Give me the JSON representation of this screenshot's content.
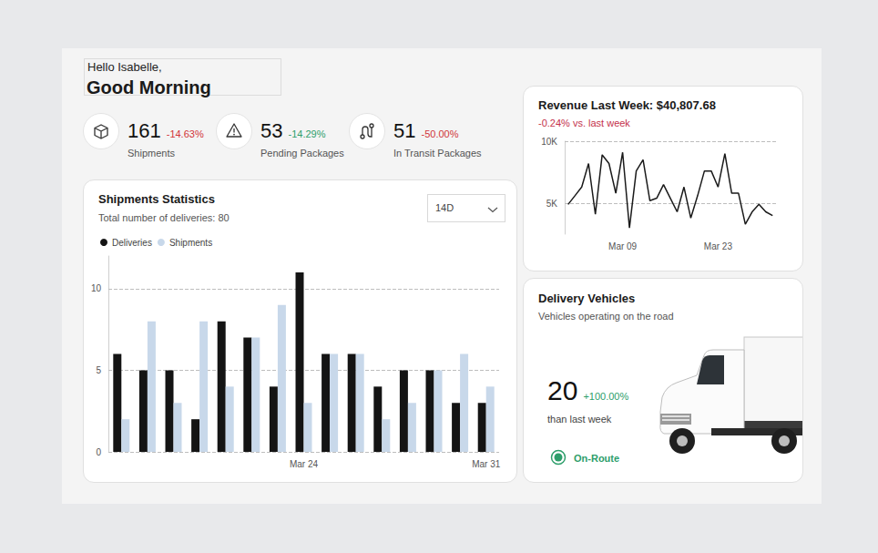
{
  "header": {
    "greeting": "Hello Isabelle,",
    "title": "Good Morning"
  },
  "kpis": [
    {
      "value": 161,
      "change": "-14.63%",
      "color": "#d13438",
      "label": "Shipments"
    },
    {
      "value": 53,
      "change": "-14.29%",
      "color": "#2e9e6b",
      "label": "Pending Packages"
    },
    {
      "value": 51,
      "change": "-50.00%",
      "color": "#d13438",
      "label": "In Transit Packages"
    }
  ],
  "chart_data": [
    {
      "type": "bar",
      "title": "Shipments Statistics",
      "subtitle": "Total number of deliveries: 80",
      "annotations": [
        "14D"
      ],
      "categories": [
        null,
        null,
        null,
        null,
        null,
        null,
        null,
        "Mar 24",
        null,
        null,
        null,
        null,
        null,
        null,
        "Mar 31"
      ],
      "series": [
        {
          "name": "Deliveries",
          "color": "#141414",
          "values": [
            6,
            5,
            5,
            2,
            8,
            7,
            4,
            11,
            6,
            6,
            4,
            5,
            5,
            3,
            3
          ]
        },
        {
          "name": "Shipments",
          "color": "#c8d8ea",
          "values": [
            2,
            8,
            3,
            8,
            4,
            7,
            9,
            3,
            6,
            6,
            2,
            3,
            5,
            6,
            4
          ]
        }
      ],
      "ylim": [
        0,
        12
      ],
      "yticks": [
        0,
        5,
        10
      ],
      "grid": true,
      "legend": "top-left"
    },
    {
      "type": "line",
      "title": "Revenue Last Week: $40,807.68",
      "subtitle": "-0.24% vs. last week",
      "categories": [
        null,
        null,
        null,
        null,
        null,
        null,
        null,
        null,
        "Mar 09",
        null,
        null,
        null,
        null,
        null,
        null,
        null,
        null,
        null,
        null,
        null,
        null,
        null,
        "Mar 23",
        null,
        null,
        null,
        null,
        null,
        null,
        null,
        null
      ],
      "values": [
        4900,
        5600,
        6300,
        8200,
        4100,
        8900,
        8200,
        5800,
        9100,
        3000,
        7600,
        8500,
        5200,
        5400,
        6500,
        5400,
        4300,
        6300,
        3800,
        5600,
        7600,
        7600,
        6300,
        9000,
        5800,
        5800,
        3300,
        4300,
        4900,
        4300,
        4000
      ],
      "color": "#1a1a1a",
      "marker": "none",
      "line_style": "solid",
      "ylim": [
        2500,
        10000
      ],
      "yticks": [
        {
          "value": 5000,
          "label": "5K"
        },
        {
          "value": 10000,
          "label": "10K"
        }
      ],
      "grid": true
    }
  ],
  "vehicles": {
    "title": "Delivery Vehicles",
    "subtitle": "Vehicles operating on the road",
    "value": 20,
    "change": "+100.00%",
    "color": "#2e9e6b",
    "caption": "than last week",
    "status": "On-Route"
  }
}
